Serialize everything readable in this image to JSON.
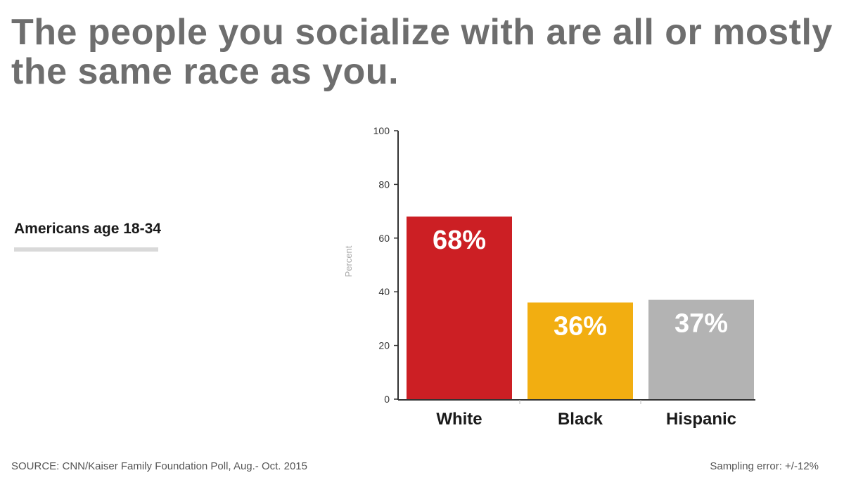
{
  "header": {
    "title": "The people you socialize with are all or mostly the same race as you.",
    "subtitle": "Americans age 18-34"
  },
  "footer": {
    "source": "SOURCE: CNN/Kaiser Family Foundation Poll, Aug.- Oct. 2015",
    "sampling_error": "Sampling error: +/-12%"
  },
  "chart_data": {
    "type": "bar",
    "title": "The people you socialize with are all or mostly the same race as you.",
    "subtitle": "Americans age 18-34",
    "categories": [
      "White",
      "Black",
      "Hispanic"
    ],
    "values": [
      68,
      36,
      37
    ],
    "value_labels": [
      "68%",
      "36%",
      "37%"
    ],
    "colors": [
      "#cc1f24",
      "#f2ae11",
      "#b3b3b3"
    ],
    "ylabel": "Percent",
    "xlabel": "",
    "ylim": [
      0,
      100
    ],
    "yticks": [
      0,
      20,
      40,
      60,
      80,
      100
    ],
    "grid": false,
    "legend": "none"
  }
}
